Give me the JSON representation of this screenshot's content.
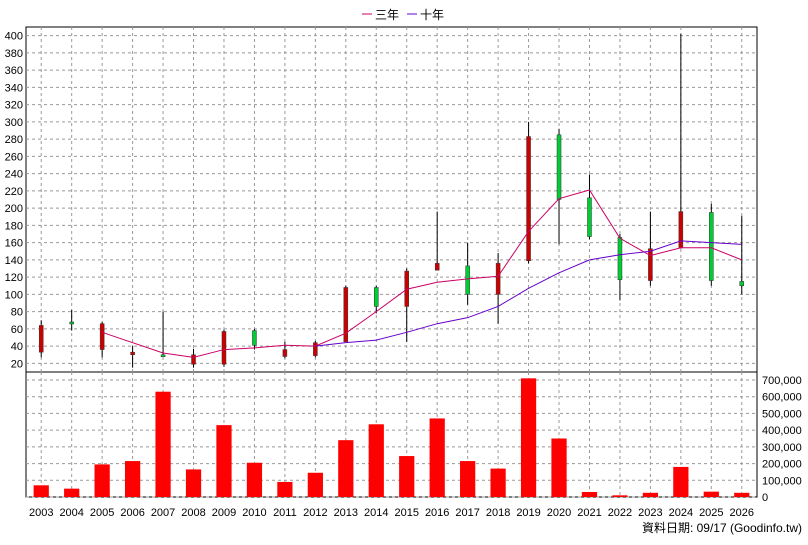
{
  "legend": [
    {
      "label": "三年",
      "color": "#cc0066"
    },
    {
      "label": "十年",
      "color": "#6600cc"
    }
  ],
  "footer": {
    "text": "資料日期: 09/17  (Goodinfo.tw)"
  },
  "colors": {
    "up": "#00cc33",
    "down": "#cc0000",
    "volume": "#ff0000",
    "grid": "#999999",
    "wick": "#000000"
  },
  "chart_data": [
    {
      "type": "candlestick",
      "title": "",
      "categories": [
        "2003",
        "2004",
        "2005",
        "2006",
        "2007",
        "2008",
        "2009",
        "2010",
        "2011",
        "2012",
        "2013",
        "2014",
        "2015",
        "2016",
        "2017",
        "2018",
        "2019",
        "2020",
        "2021",
        "2022",
        "2023",
        "2024",
        "2025",
        "2026"
      ],
      "ylim": [
        10,
        410
      ],
      "yticks": [
        20,
        40,
        60,
        80,
        100,
        120,
        140,
        160,
        180,
        200,
        220,
        240,
        260,
        280,
        300,
        320,
        340,
        360,
        380,
        400
      ],
      "grid": true,
      "legend_position": "top-center",
      "ohlc": [
        {
          "x": "2003",
          "open": 64,
          "high": 70,
          "low": 27,
          "close": 33
        },
        {
          "x": "2004",
          "open": 66,
          "high": 82,
          "low": 58,
          "close": 68
        },
        {
          "x": "2005",
          "open": 66,
          "high": 68,
          "low": 27,
          "close": 36
        },
        {
          "x": "2006",
          "open": 33,
          "high": 40,
          "low": 15,
          "close": 30
        },
        {
          "x": "2007",
          "open": 30,
          "high": 80,
          "low": 28,
          "close": 30
        },
        {
          "x": "2008",
          "open": 30,
          "high": 37,
          "low": 15,
          "close": 19
        },
        {
          "x": "2009",
          "open": 57,
          "high": 59,
          "low": 16,
          "close": 19
        },
        {
          "x": "2010",
          "open": 41,
          "high": 60,
          "low": 36,
          "close": 58
        },
        {
          "x": "2011",
          "open": 36,
          "high": 45,
          "low": 26,
          "close": 28
        },
        {
          "x": "2012",
          "open": 44,
          "high": 46,
          "low": 27,
          "close": 29
        },
        {
          "x": "2013",
          "open": 108,
          "high": 110,
          "low": 45,
          "close": 45
        },
        {
          "x": "2014",
          "open": 86,
          "high": 110,
          "low": 78,
          "close": 108
        },
        {
          "x": "2015",
          "open": 127,
          "high": 130,
          "low": 45,
          "close": 86
        },
        {
          "x": "2016",
          "open": 136,
          "high": 196,
          "low": 128,
          "close": 128
        },
        {
          "x": "2017",
          "open": 100,
          "high": 160,
          "low": 88,
          "close": 133
        },
        {
          "x": "2018",
          "open": 136,
          "high": 148,
          "low": 66,
          "close": 100
        },
        {
          "x": "2019",
          "open": 283,
          "high": 300,
          "low": 136,
          "close": 139
        },
        {
          "x": "2020",
          "open": 210,
          "high": 292,
          "low": 158,
          "close": 285
        },
        {
          "x": "2021",
          "open": 167,
          "high": 239,
          "low": 164,
          "close": 212
        },
        {
          "x": "2022",
          "open": 117,
          "high": 170,
          "low": 93,
          "close": 166
        },
        {
          "x": "2023",
          "open": 153,
          "high": 196,
          "low": 110,
          "close": 116
        },
        {
          "x": "2024",
          "open": 196,
          "high": 402,
          "low": 153,
          "close": 154
        },
        {
          "x": "2025",
          "open": 116,
          "high": 205,
          "low": 110,
          "close": 195
        },
        {
          "x": "2026",
          "open": 110,
          "high": 191,
          "low": 100,
          "close": 115
        }
      ],
      "series": [
        {
          "name": "三年",
          "x": [
            "2005",
            "2007",
            "2008",
            "2009",
            "2010",
            "2011",
            "2012",
            "2013",
            "2014",
            "2015",
            "2016",
            "2017",
            "2018",
            "2019",
            "2020",
            "2021",
            "2022",
            "2023",
            "2024",
            "2025",
            "2026"
          ],
          "values": [
            56,
            32,
            27,
            36,
            38,
            41,
            40,
            55,
            80,
            106,
            114,
            118,
            121,
            173,
            211,
            221,
            165,
            145,
            154,
            154,
            140
          ]
        },
        {
          "name": "十年",
          "x": [
            "2012",
            "2013",
            "2014",
            "2015",
            "2016",
            "2017",
            "2018",
            "2019",
            "2020",
            "2021",
            "2022",
            "2023",
            "2024",
            "2025",
            "2026"
          ],
          "values": [
            40,
            44,
            47,
            56,
            66,
            73,
            86,
            107,
            125,
            140,
            146,
            150,
            162,
            160,
            158
          ]
        }
      ]
    },
    {
      "type": "bar",
      "title": "",
      "categories": [
        "2003",
        "2004",
        "2005",
        "2006",
        "2007",
        "2008",
        "2009",
        "2010",
        "2011",
        "2012",
        "2013",
        "2014",
        "2015",
        "2016",
        "2017",
        "2018",
        "2019",
        "2020",
        "2021",
        "2022",
        "2023",
        "2024",
        "2025",
        "2026"
      ],
      "values": [
        70000,
        50000,
        195000,
        215000,
        630000,
        165000,
        430000,
        205000,
        90000,
        145000,
        340000,
        435000,
        245000,
        470000,
        215000,
        170000,
        710000,
        350000,
        30000,
        10000,
        25000,
        180000,
        32000,
        25000
      ],
      "ylim": [
        0,
        700000
      ],
      "yticks": [
        "0",
        "100,000",
        "200,000",
        "300,000",
        "400,000",
        "500,000",
        "600,000",
        "700,000"
      ],
      "ytick_values": [
        0,
        100000,
        200000,
        300000,
        400000,
        500000,
        600000,
        700000
      ],
      "grid": true
    }
  ]
}
